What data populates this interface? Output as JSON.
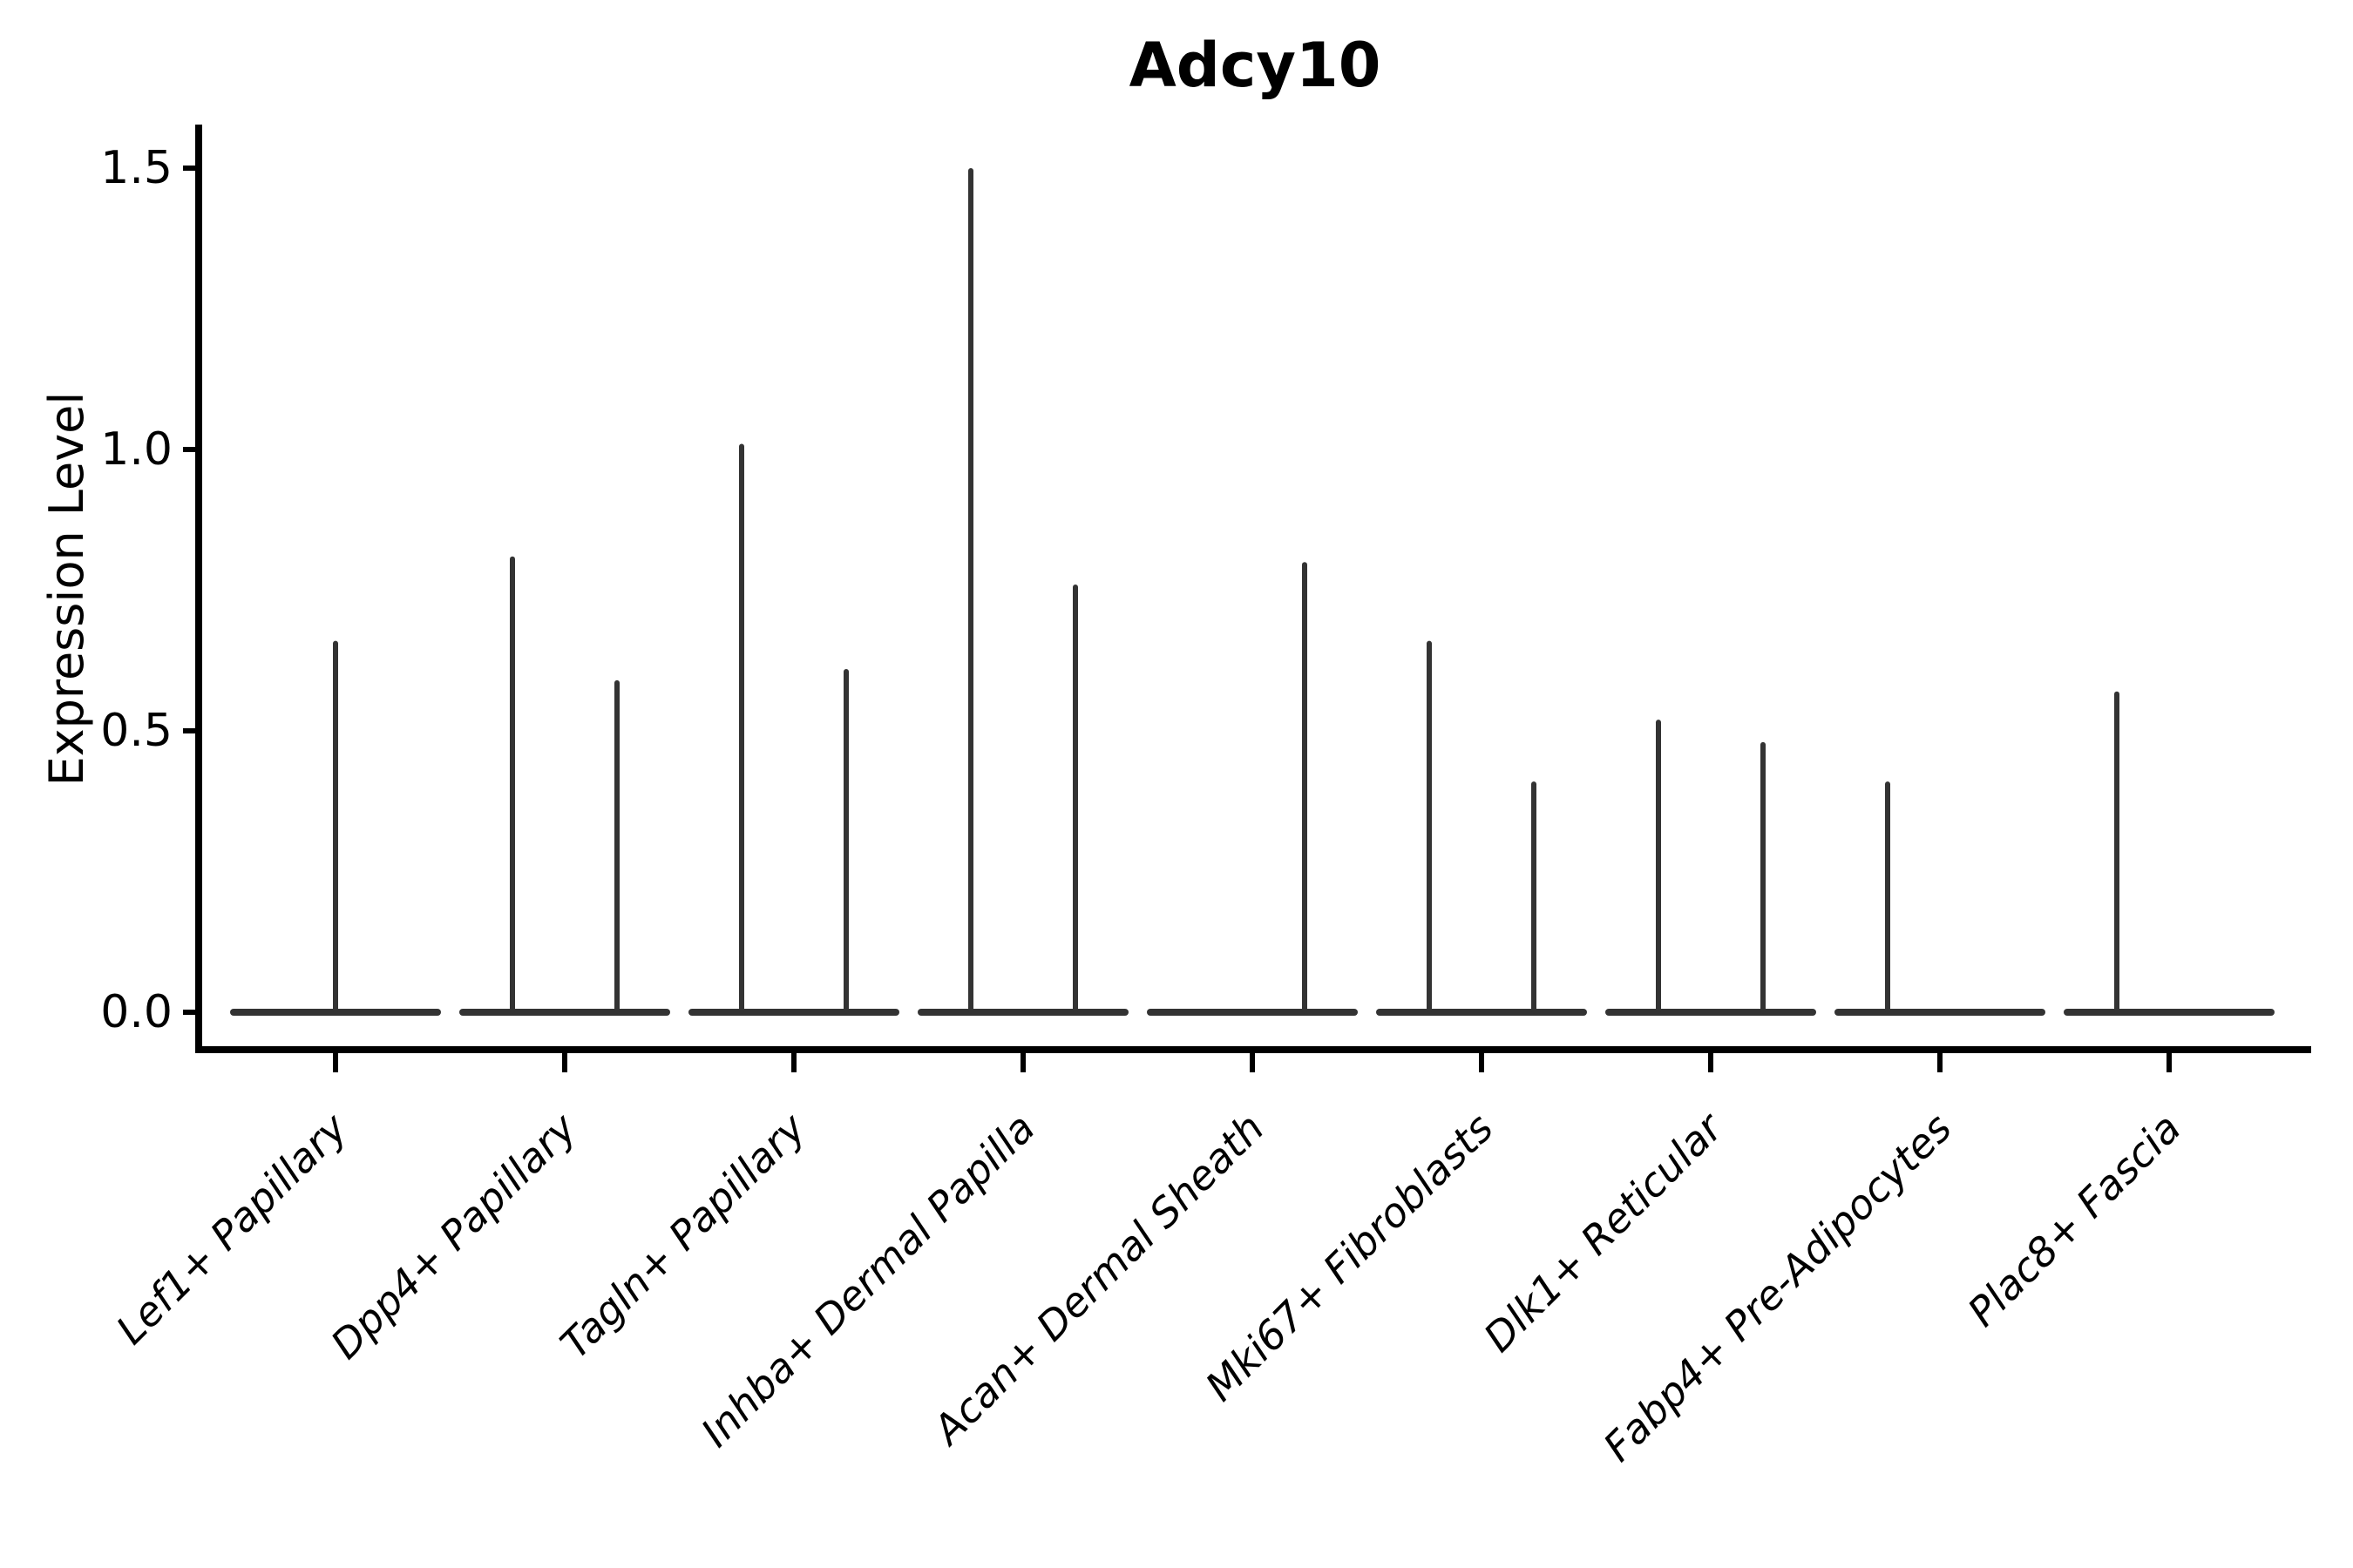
{
  "figure": {
    "title": "Adcy10",
    "ylabel": "Expression Level"
  },
  "chart_data": {
    "type": "violin",
    "title": "Adcy10",
    "xlabel": "",
    "ylabel": "Expression Level",
    "ylim": [
      -0.07,
      1.58
    ],
    "yticks": [
      0.0,
      0.5,
      1.0,
      1.5
    ],
    "ytick_labels": [
      "0.0",
      "0.5",
      "1.0",
      "1.5"
    ],
    "grid": false,
    "legend_position": "none",
    "split_violins": true,
    "description": "Degenerate violins: wide flat base at expression 0 with a thin spike up to each group's maximum value; categories with two spikes are split left/right groups",
    "categories": [
      {
        "label": "Lef1+ Papillary",
        "violins": [
          {
            "side": "center",
            "max": 0.66
          }
        ]
      },
      {
        "label": "Dpp4+ Papillary",
        "violins": [
          {
            "side": "left",
            "max": 0.81
          },
          {
            "side": "right",
            "max": 0.59
          }
        ]
      },
      {
        "label": "Tagln+ Papillary",
        "violins": [
          {
            "side": "left",
            "max": 1.01
          },
          {
            "side": "right",
            "max": 0.61
          }
        ]
      },
      {
        "label": "Inhba+ Dermal Papilla",
        "violins": [
          {
            "side": "left",
            "max": 1.5
          },
          {
            "side": "right",
            "max": 0.76
          }
        ]
      },
      {
        "label": "Acan+ Dermal Sheath",
        "violins": [
          {
            "side": "left",
            "max": 0.0
          },
          {
            "side": "right",
            "max": 0.8
          }
        ]
      },
      {
        "label": "Mki67+ Fibroblasts",
        "violins": [
          {
            "side": "left",
            "max": 0.66
          },
          {
            "side": "right",
            "max": 0.41
          }
        ]
      },
      {
        "label": "Dlk1+ Reticular",
        "violins": [
          {
            "side": "left",
            "max": 0.52
          },
          {
            "side": "right",
            "max": 0.48
          }
        ]
      },
      {
        "label": "Fabp4+ Pre-Adipocytes",
        "violins": [
          {
            "side": "left",
            "max": 0.41
          },
          {
            "side": "right",
            "max": 0.0
          }
        ]
      },
      {
        "label": "Plac8+ Fascia",
        "violins": [
          {
            "side": "left",
            "max": 0.57
          },
          {
            "side": "right",
            "max": 0.0
          }
        ]
      }
    ],
    "colors": {
      "violin_ink": "#333333",
      "axis": "#000000",
      "text": "#000000",
      "background": "#ffffff"
    }
  }
}
